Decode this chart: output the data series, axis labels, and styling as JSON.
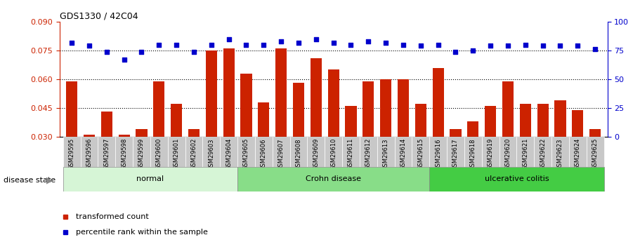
{
  "title": "GDS1330 / 42C04",
  "samples": [
    "GSM29595",
    "GSM29596",
    "GSM29597",
    "GSM29598",
    "GSM29599",
    "GSM29600",
    "GSM29601",
    "GSM29602",
    "GSM29603",
    "GSM29604",
    "GSM29605",
    "GSM29606",
    "GSM29607",
    "GSM29608",
    "GSM29609",
    "GSM29610",
    "GSM29611",
    "GSM29612",
    "GSM29613",
    "GSM29614",
    "GSM29615",
    "GSM29616",
    "GSM29617",
    "GSM29618",
    "GSM29619",
    "GSM29620",
    "GSM29621",
    "GSM29622",
    "GSM29623",
    "GSM29624",
    "GSM29625"
  ],
  "bar_values": [
    0.059,
    0.031,
    0.043,
    0.031,
    0.034,
    0.059,
    0.047,
    0.034,
    0.075,
    0.076,
    0.063,
    0.048,
    0.076,
    0.058,
    0.071,
    0.065,
    0.046,
    0.059,
    0.06,
    0.06,
    0.047,
    0.066,
    0.034,
    0.038,
    0.046,
    0.059,
    0.047,
    0.047,
    0.049,
    0.044,
    0.034
  ],
  "blue_values": [
    82,
    79,
    74,
    67,
    74,
    80,
    80,
    74,
    80,
    85,
    80,
    80,
    83,
    82,
    85,
    82,
    80,
    83,
    82,
    80,
    79,
    80,
    74,
    75,
    79,
    79,
    80,
    79,
    79,
    79,
    76
  ],
  "groups": [
    {
      "label": "normal",
      "start": 0,
      "end": 10,
      "color": "#d6f5d6"
    },
    {
      "label": "Crohn disease",
      "start": 10,
      "end": 21,
      "color": "#88dd88"
    },
    {
      "label": "ulcerative colitis",
      "start": 21,
      "end": 31,
      "color": "#44cc44"
    }
  ],
  "bar_color": "#cc2200",
  "dot_color": "#0000cc",
  "left_ylim": [
    0.03,
    0.09
  ],
  "left_yticks": [
    0.03,
    0.045,
    0.06,
    0.075,
    0.09
  ],
  "right_ylim": [
    0,
    100
  ],
  "right_yticks": [
    0,
    25,
    50,
    75,
    100
  ],
  "left_ycolor": "#cc2200",
  "right_ycolor": "#0000cc",
  "grid_values": [
    0.045,
    0.06,
    0.075
  ],
  "bg_color": "#ffffff",
  "tick_label_bg": "#c8c8c8",
  "legend_items": [
    {
      "label": "transformed count",
      "color": "#cc2200"
    },
    {
      "label": "percentile rank within the sample",
      "color": "#0000cc"
    }
  ]
}
